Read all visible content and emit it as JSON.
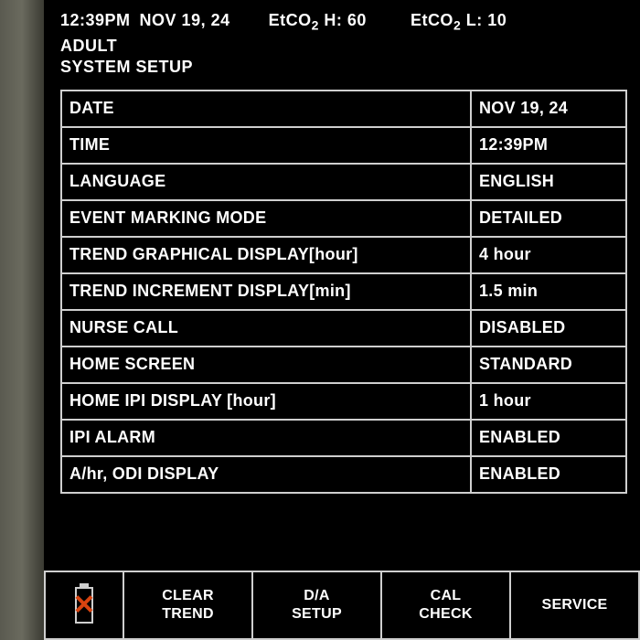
{
  "status": {
    "time": "12:39PM",
    "date": "NOV 19, 24",
    "etco2_h_prefix": "EtCO",
    "etco2_h_sub": "2",
    "etco2_h_suffix": " H: 60",
    "etco2_l_prefix": "EtCO",
    "etco2_l_sub": "2",
    "etco2_l_suffix": " L:  10"
  },
  "header": {
    "patient_type": "ADULT",
    "screen_title": "SYSTEM SETUP"
  },
  "settings": [
    {
      "label": "DATE",
      "value": "NOV 19, 24"
    },
    {
      "label": "TIME",
      "value": "12:39PM"
    },
    {
      "label": "LANGUAGE",
      "value": "ENGLISH"
    },
    {
      "label": "EVENT MARKING MODE",
      "value": "DETAILED"
    },
    {
      "label": "TREND GRAPHICAL DISPLAY[hour]",
      "value": "4 hour"
    },
    {
      "label": "TREND INCREMENT DISPLAY[min]",
      "value": "1.5 min"
    },
    {
      "label": "NURSE CALL",
      "value": "DISABLED"
    },
    {
      "label": "HOME SCREEN",
      "value": "STANDARD"
    },
    {
      "label": "HOME IPI DISPLAY [hour]",
      "value": "1 hour"
    },
    {
      "label": "IPI ALARM",
      "value": "ENABLED"
    },
    {
      "label": "A/hr, ODI DISPLAY",
      "value": "ENABLED"
    }
  ],
  "softkeys": {
    "k1": "CLEAR\nTREND",
    "k2": "D/A\nSETUP",
    "k3": "CAL\nCHECK",
    "k4": "SERVICE"
  },
  "colors": {
    "screen_bg": "#000000",
    "text": "#ffffff",
    "border": "#cfcfcf",
    "battery_x": "#d84410",
    "bezel": "#4a4a42"
  }
}
